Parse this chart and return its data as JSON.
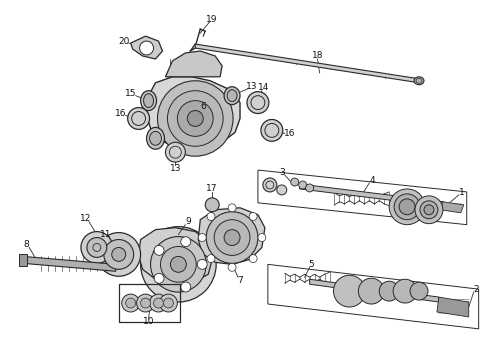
{
  "bg_color": "#ffffff",
  "line_color": "#2a2a2a",
  "gray_fill": "#c8c8c8",
  "light_gray": "#e0e0e0",
  "dark_gray": "#888888",
  "figsize": [
    4.9,
    3.6
  ],
  "dpi": 100
}
